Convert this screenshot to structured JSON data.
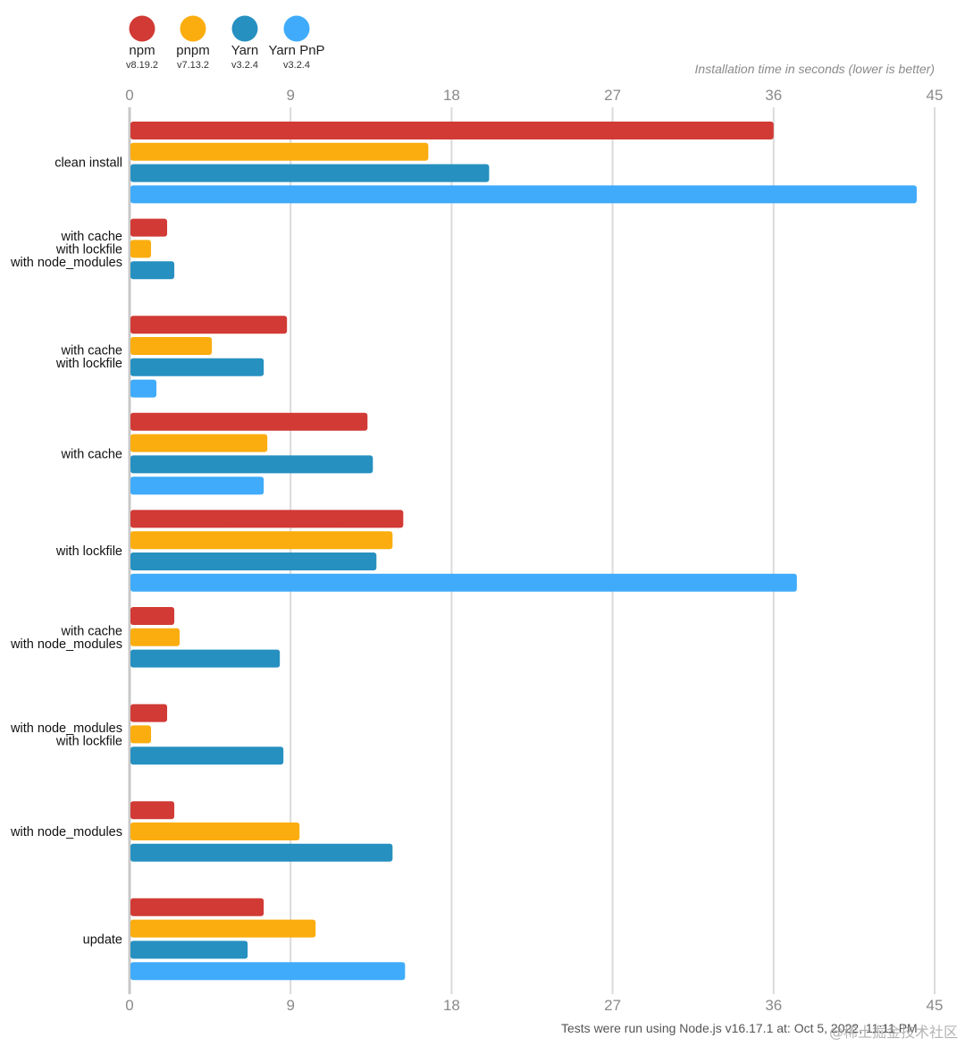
{
  "chart_data": {
    "type": "bar",
    "orientation": "horizontal",
    "title": "",
    "xlabel": "Installation time in seconds (lower is better)",
    "ylabel": "",
    "xlim": [
      0,
      45
    ],
    "xticks": [
      0,
      9,
      18,
      27,
      36,
      45
    ],
    "grid": true,
    "legend_position": "top-left",
    "categories": [
      [
        "clean install"
      ],
      [
        "with cache",
        "with lockfile",
        "with node_modules"
      ],
      [
        "with cache",
        "with lockfile"
      ],
      [
        "with cache"
      ],
      [
        "with lockfile"
      ],
      [
        "with cache",
        "with node_modules"
      ],
      [
        "with node_modules",
        "with lockfile"
      ],
      [
        "with node_modules"
      ],
      [
        "update"
      ]
    ],
    "series": [
      {
        "name": "npm",
        "version": "v8.19.2",
        "color": "#d13a35",
        "values": [
          36.0,
          2.1,
          8.8,
          13.3,
          15.3,
          2.5,
          2.1,
          2.5,
          7.5
        ]
      },
      {
        "name": "pnpm",
        "version": "v7.13.2",
        "color": "#fbad0f",
        "values": [
          16.7,
          1.2,
          4.6,
          7.7,
          14.7,
          2.8,
          1.2,
          9.5,
          10.4
        ]
      },
      {
        "name": "Yarn",
        "version": "v3.2.4",
        "color": "#2690c0",
        "values": [
          20.1,
          2.5,
          7.5,
          13.6,
          13.8,
          8.4,
          8.6,
          14.7,
          6.6
        ]
      },
      {
        "name": "Yarn PnP",
        "version": "v3.2.4",
        "color": "#3fabfa",
        "values": [
          44.0,
          null,
          1.5,
          7.5,
          37.3,
          null,
          null,
          null,
          15.4
        ]
      }
    ],
    "footer": "Tests were run using Node.js v16.17.1 at: Oct 5, 2022, 11:11 PM",
    "watermark": "@稀土掘金技术社区"
  }
}
